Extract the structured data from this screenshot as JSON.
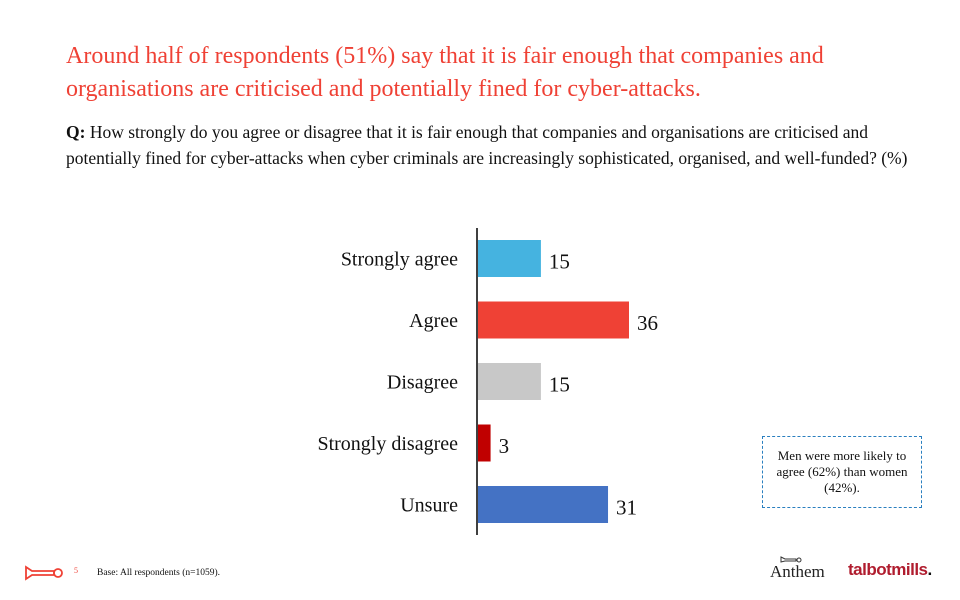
{
  "headline": "Around half of respondents (51%) say that it is fair enough that companies and organisations are criticised and potentially fined for cyber-attacks.",
  "question": {
    "prefix": "Q:",
    "text": " How strongly do you agree or disagree that it is fair enough that companies and organisations are criticised and potentially fined for cyber-attacks when cyber criminals are increasingly sophisticated, organised, and well-funded? (%)"
  },
  "chart_data": {
    "type": "bar",
    "orientation": "horizontal",
    "categories": [
      "Strongly agree",
      "Agree",
      "Disagree",
      "Strongly disagree",
      "Unsure"
    ],
    "values": [
      15,
      36,
      15,
      3,
      31
    ],
    "colors": [
      "#45b3e0",
      "#ef4135",
      "#c8c8c8",
      "#c00000",
      "#4472c4"
    ],
    "data_labels": [
      "15",
      "36",
      "15",
      "3",
      "31"
    ],
    "xlim": [
      0,
      40
    ],
    "grid": false,
    "legend": "none"
  },
  "callout": "Men were more likely to agree (62%) than women (42%).",
  "footer": {
    "page_number": "5",
    "base": "Base: All respondents (n=1059)."
  },
  "logos": {
    "anthem": "Anthem",
    "talbotmills": "talbotmills",
    "talbotmills_dot": "."
  }
}
